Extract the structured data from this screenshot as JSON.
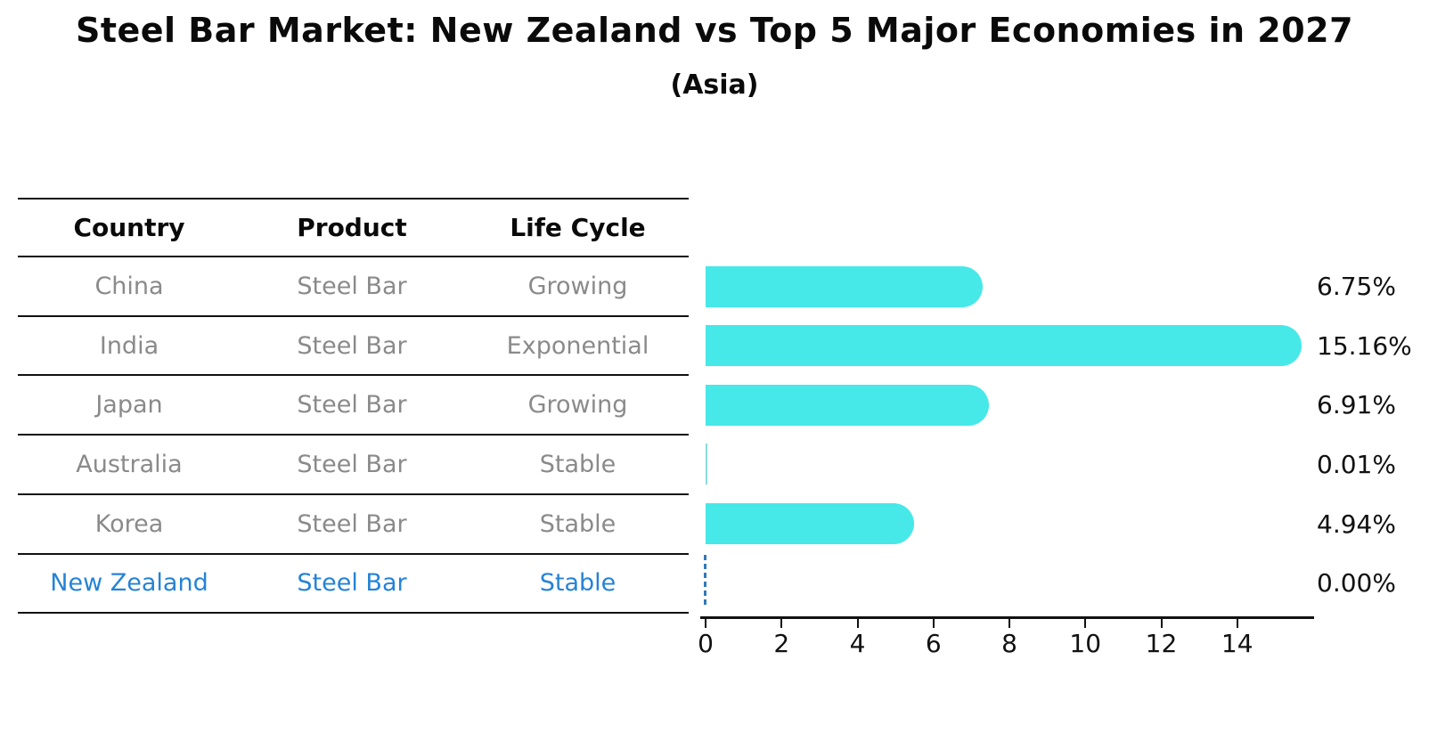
{
  "chart_data": {
    "type": "bar",
    "orientation": "horizontal",
    "title": "Steel Bar Market: New Zealand vs Top 5 Major Economies in 2027",
    "subtitle": "(Asia)",
    "categories": [
      "China",
      "India",
      "Japan",
      "Australia",
      "Korea",
      "New Zealand"
    ],
    "values": [
      6.75,
      15.16,
      6.91,
      0.01,
      4.94,
      0.0
    ],
    "value_labels": [
      "6.75%",
      "15.16%",
      "6.91%",
      "0.01%",
      "4.94%",
      "0.00%"
    ],
    "x_ticks": [
      "0",
      "2",
      "4",
      "6",
      "8",
      "10",
      "12",
      "14"
    ],
    "xlim": [
      0,
      16
    ],
    "grid": false,
    "legend": "none",
    "bar_color": "#46e8e8",
    "tiny_bar_color": "#8adcd8",
    "highlight_color": "#2583d6",
    "zero_marker_style": "blue-dashed-vertical-line"
  },
  "table": {
    "headers": [
      "Country",
      "Product",
      "Life Cycle"
    ],
    "rows": [
      {
        "country": "China",
        "product": "Steel Bar",
        "life_cycle": "Growing",
        "highlighted": false
      },
      {
        "country": "India",
        "product": "Steel Bar",
        "life_cycle": "Exponential",
        "highlighted": false
      },
      {
        "country": "Japan",
        "product": "Steel Bar",
        "life_cycle": "Growing",
        "highlighted": false
      },
      {
        "country": "Australia",
        "product": "Steel Bar",
        "life_cycle": "Stable",
        "highlighted": false
      },
      {
        "country": "Korea",
        "product": "Steel Bar",
        "life_cycle": "Stable",
        "highlighted": false
      },
      {
        "country": "New Zealand",
        "product": "Steel Bar",
        "life_cycle": "Stable",
        "highlighted": true
      }
    ]
  }
}
